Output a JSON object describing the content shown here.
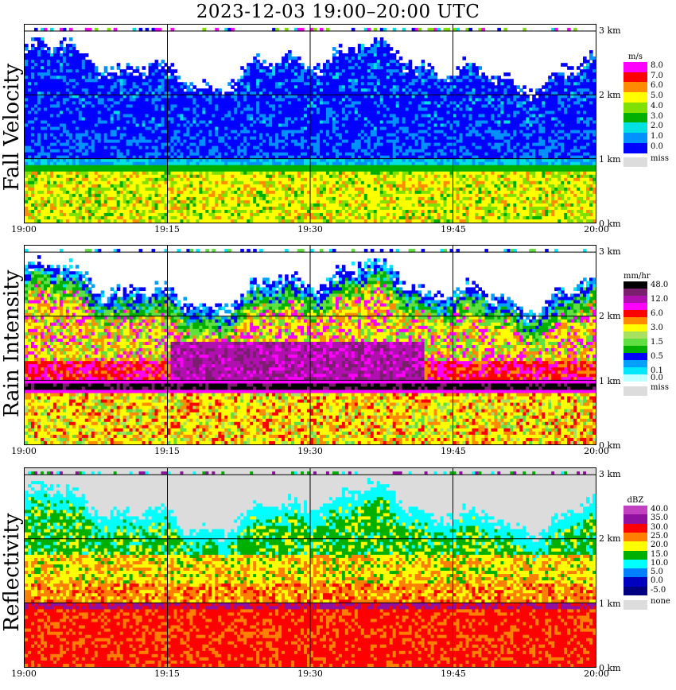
{
  "title": "2023-12-03   19:00–20:00 UTC",
  "x_tick_labels": [
    "19:00",
    "19:15",
    "19:30",
    "19:45",
    "20:00"
  ],
  "y_tick_labels": [
    "0 km",
    "1 km",
    "2 km",
    "3 km"
  ],
  "chart_data": [
    {
      "type": "heatmap",
      "title": "Fall Velocity",
      "x_range": [
        "19:00",
        "20:00"
      ],
      "y_range_km": [
        0,
        3.1
      ],
      "grid": true,
      "legend": {
        "unit": "m/s",
        "levels": [
          {
            "label": "8.0",
            "color": "#ff00ff"
          },
          {
            "label": "7.0",
            "color": "#ff0000"
          },
          {
            "label": "6.0",
            "color": "#ff8c00"
          },
          {
            "label": "5.0",
            "color": "#ffff00"
          },
          {
            "label": "4.0",
            "color": "#80e000"
          },
          {
            "label": "3.0",
            "color": "#00b000"
          },
          {
            "label": "2.0",
            "color": "#00e0e0"
          },
          {
            "label": "1.0",
            "color": "#0090ff"
          },
          {
            "label": "0.0",
            "color": "#0000ff"
          }
        ],
        "missing_label": "miss",
        "missing_color": "#dcdcdc"
      },
      "layers_km": [
        {
          "from": 0.0,
          "to": 0.85,
          "dominant": "5.0–6.0 m/s"
        },
        {
          "from": 0.85,
          "to": 1.0,
          "dominant": "3.0–4.0 m/s"
        },
        {
          "from": 1.0,
          "to": 2.7,
          "dominant": "0.0–2.0 m/s"
        }
      ]
    },
    {
      "type": "heatmap",
      "title": "Rain Intensity",
      "x_range": [
        "19:00",
        "20:00"
      ],
      "y_range_km": [
        0,
        3.1
      ],
      "grid": true,
      "legend": {
        "unit": "mm/hr",
        "levels": [
          {
            "label": "48.0",
            "color": "#000000"
          },
          {
            "label": "",
            "color": "#7a1e6e"
          },
          {
            "label": "12.0",
            "color": "#b010b0"
          },
          {
            "label": "",
            "color": "#ff00ff"
          },
          {
            "label": "6.0",
            "color": "#ff0000"
          },
          {
            "label": "",
            "color": "#ff8c00"
          },
          {
            "label": "3.0",
            "color": "#ffff00"
          },
          {
            "label": "",
            "color": "#a8e060"
          },
          {
            "label": "1.5",
            "color": "#60e040"
          },
          {
            "label": "",
            "color": "#00b000"
          },
          {
            "label": "0.5",
            "color": "#0000ff"
          },
          {
            "label": "",
            "color": "#00a0ff"
          },
          {
            "label": "0.1",
            "color": "#00e8ff"
          },
          {
            "label": "0.0",
            "color": "#c0ffff"
          }
        ],
        "missing_label": "miss",
        "missing_color": "#dcdcdc"
      },
      "bright_band_km": 0.85
    },
    {
      "type": "heatmap",
      "title": "Reflectivity",
      "x_range": [
        "19:00",
        "20:00"
      ],
      "y_range_km": [
        0,
        3.1
      ],
      "grid": true,
      "legend": {
        "unit": "dBZ",
        "levels": [
          {
            "label": "40.0",
            "color": "#c040c0"
          },
          {
            "label": "35.0",
            "color": "#9010a0"
          },
          {
            "label": "30.0",
            "color": "#ff0000"
          },
          {
            "label": "25.0",
            "color": "#ff8000"
          },
          {
            "label": "20.0",
            "color": "#ffff00"
          },
          {
            "label": "15.0",
            "color": "#00b000"
          },
          {
            "label": "10.0",
            "color": "#00ffff"
          },
          {
            "label": "5.0",
            "color": "#0080ff"
          },
          {
            "label": "0.0",
            "color": "#0000c0"
          },
          {
            "label": "-5.0",
            "color": "#000080"
          }
        ],
        "missing_label": "none",
        "missing_color": "#dcdcdc"
      },
      "layers_km": [
        {
          "from": 0.0,
          "to": 0.95,
          "dominant": "25.0–30.0 dBZ"
        },
        {
          "from": 0.95,
          "to": 1.7,
          "dominant": "15.0–25.0 dBZ"
        },
        {
          "from": 1.7,
          "to": 2.7,
          "dominant": "5.0–15.0 dBZ"
        }
      ]
    }
  ]
}
